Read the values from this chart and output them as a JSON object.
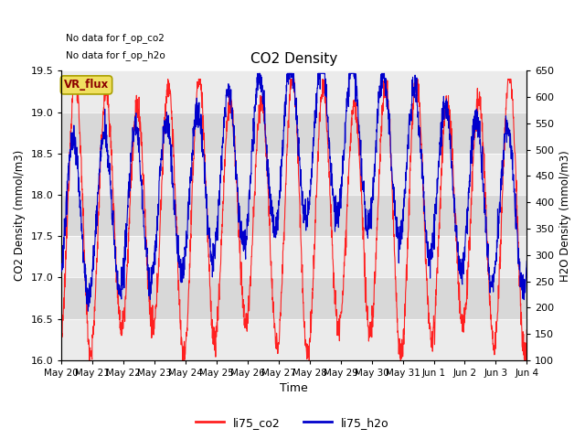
{
  "title": "CO2 Density",
  "xlabel": "Time",
  "ylabel_left": "CO2 Density (mmol/m3)",
  "ylabel_right": "H2O Density (mmol/m3)",
  "annotation_line1": "No data for f_op_co2",
  "annotation_line2": "No data for f_op_h2o",
  "legend_box_label": "VR_flux",
  "legend_box_facecolor": "#f0e060",
  "legend_box_edgecolor": "#aaa000",
  "legend_box_text_color": "#8b0000",
  "ylim_left": [
    16.0,
    19.5
  ],
  "ylim_right": [
    100,
    650
  ],
  "yticks_left": [
    16.0,
    16.5,
    17.0,
    17.5,
    18.0,
    18.5,
    19.0,
    19.5
  ],
  "yticks_right": [
    100,
    150,
    200,
    250,
    300,
    350,
    400,
    450,
    500,
    550,
    600,
    650
  ],
  "co2_color": "#ff2020",
  "h2o_color": "#0000cc",
  "plot_bg_color": "#e0e0e0",
  "band_color_light": "#ebebeb",
  "band_color_dark": "#d8d8d8",
  "grid_color": "#c8c8c8",
  "n_points": 2000,
  "period_hours": 24
}
